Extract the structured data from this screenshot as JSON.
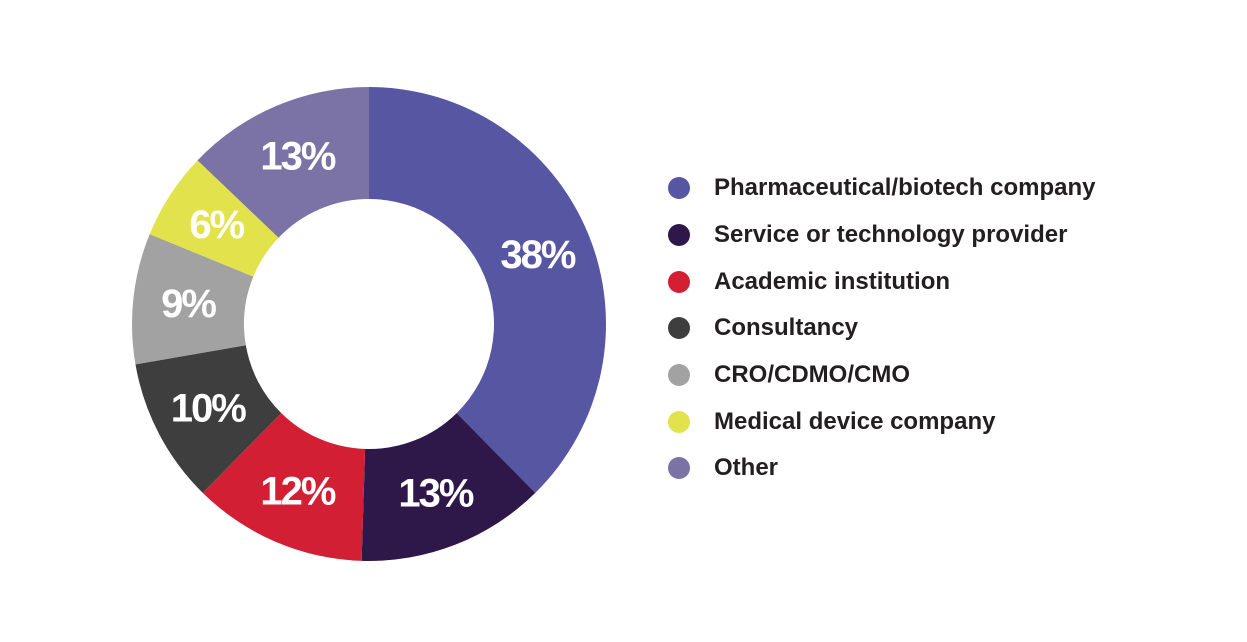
{
  "chart_data": {
    "type": "pie",
    "variant": "donut",
    "legend_position": "right",
    "slices": [
      {
        "name": "Pharmaceutical/biotech company",
        "value": 38,
        "label": "38%",
        "color": "#5656a3"
      },
      {
        "name": "Service or technology provider",
        "value": 13,
        "label": "13%",
        "color": "#2e1849"
      },
      {
        "name": "Academic institution",
        "value": 12,
        "label": "12%",
        "color": "#d21f34"
      },
      {
        "name": "Consultancy",
        "value": 10,
        "label": "10%",
        "color": "#3e3e3e"
      },
      {
        "name": "CRO/CDMO/CMO",
        "value": 9,
        "label": "9%",
        "color": "#a2a2a2"
      },
      {
        "name": "Medical device company",
        "value": 6,
        "label": "6%",
        "color": "#e2e24c"
      },
      {
        "name": "Other",
        "value": 13,
        "label": "13%",
        "color": "#7b72a5"
      }
    ]
  }
}
